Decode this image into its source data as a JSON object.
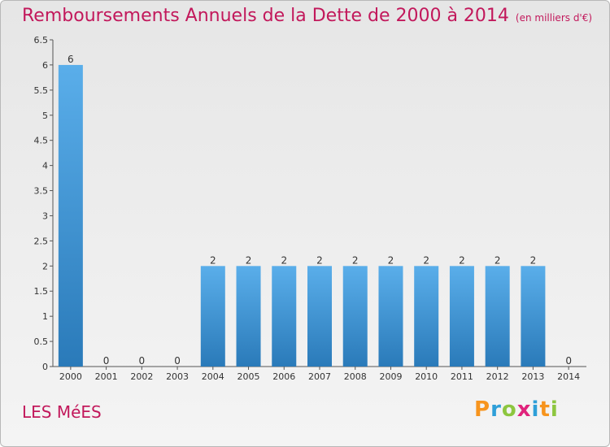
{
  "header": {
    "title": "Remboursements Annuels de la Dette de 2000 à 2014",
    "subtitle": "(en milliers d'€)"
  },
  "footer": {
    "commune": "LES MéES",
    "logo": {
      "letters": [
        "P",
        "r",
        "o",
        "x",
        "i",
        "t",
        "i"
      ],
      "colors": [
        "#f7941d",
        "#2e9fd8",
        "#8dc63f",
        "#e0237c",
        "#2e9fd8",
        "#f7941d",
        "#8dc63f"
      ]
    }
  },
  "chart_data": {
    "type": "bar",
    "title": "Remboursements Annuels de la Dette de 2000 à 2014",
    "categories": [
      "2000",
      "2001",
      "2002",
      "2003",
      "2004",
      "2005",
      "2006",
      "2007",
      "2008",
      "2009",
      "2010",
      "2011",
      "2012",
      "2013",
      "2014"
    ],
    "values": [
      6,
      0,
      0,
      0,
      2,
      2,
      2,
      2,
      2,
      2,
      2,
      2,
      2,
      2,
      0
    ],
    "value_labels": [
      "6",
      "0",
      "0",
      "0",
      "2",
      "2",
      "2",
      "2",
      "2",
      "2",
      "2",
      "2",
      "2",
      "2",
      "0"
    ],
    "ylim": [
      0,
      6.5
    ],
    "yticks": [
      0,
      0.5,
      1,
      1.5,
      2,
      2.5,
      3,
      3.5,
      4,
      4.5,
      5,
      5.5,
      6,
      6.5
    ],
    "ytick_labels": [
      "0",
      "0.5",
      "1",
      "1.5",
      "2",
      "2.5",
      "3",
      "3.5",
      "4",
      "4.5",
      "5",
      "5.5",
      "6",
      "6.5"
    ],
    "grid": false,
    "colors": {
      "bar_top": "#5aaeea",
      "bar_bottom": "#2a7ab9",
      "title": "#c2185b"
    }
  }
}
